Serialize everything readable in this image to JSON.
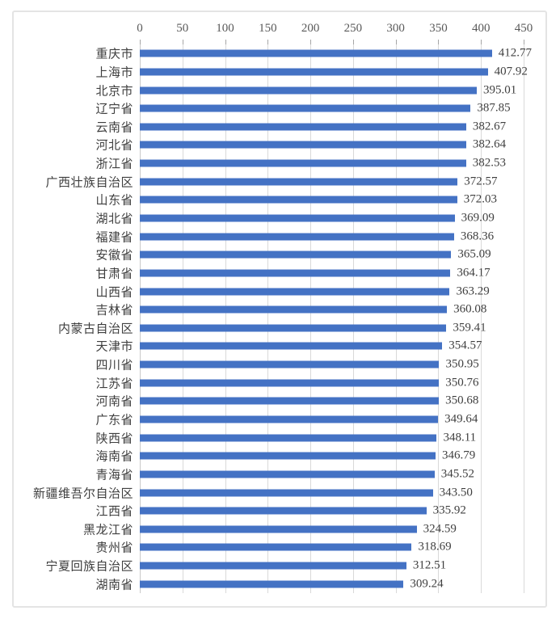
{
  "chart_data": {
    "type": "bar",
    "orientation": "horizontal",
    "title": "",
    "xlabel": "",
    "ylabel": "",
    "legend": false,
    "grid": true,
    "data_labels": true,
    "x_axis": {
      "position": "top",
      "range": [
        0,
        450
      ],
      "tick_interval": 50,
      "tick_labels": [
        "0",
        "50",
        "100",
        "150",
        "200",
        "250",
        "300",
        "350",
        "400",
        "450"
      ]
    },
    "categories": [
      "重庆市",
      "上海市",
      "北京市",
      "辽宁省",
      "云南省",
      "河北省",
      "浙江省",
      "广西壮族自治区",
      "山东省",
      "湖北省",
      "福建省",
      "安徽省",
      "甘肃省",
      "山西省",
      "吉林省",
      "内蒙古自治区",
      "天津市",
      "四川省",
      "江苏省",
      "河南省",
      "广东省",
      "陕西省",
      "海南省",
      "青海省",
      "新疆维吾尔自治区",
      "江西省",
      "黑龙江省",
      "贵州省",
      "宁夏回族自治区",
      "湖南省"
    ],
    "values": [
      412.77,
      407.92,
      395.01,
      387.85,
      382.67,
      382.64,
      382.53,
      372.57,
      372.03,
      369.09,
      368.36,
      365.09,
      364.17,
      363.29,
      360.08,
      359.41,
      354.57,
      350.95,
      350.76,
      350.68,
      349.64,
      348.11,
      346.79,
      345.52,
      343.5,
      335.92,
      324.59,
      318.69,
      312.51,
      309.24
    ],
    "value_labels": [
      "412.77",
      "407.92",
      "395.01",
      "387.85",
      "382.67",
      "382.64",
      "382.53",
      "372.57",
      "372.03",
      "369.09",
      "368.36",
      "365.09",
      "364.17",
      "363.29",
      "360.08",
      "359.41",
      "354.57",
      "350.95",
      "350.76",
      "350.68",
      "349.64",
      "348.11",
      "346.79",
      "345.52",
      "343.50",
      "335.92",
      "324.59",
      "318.69",
      "312.51",
      "309.24"
    ]
  },
  "colors": {
    "bar": "#4472C4",
    "axis_text": "#595959",
    "label_text": "#3f3f3f",
    "gridline": "#d9d9d9",
    "tick": "#a6a6a6",
    "frame_border": "#e4e4e4"
  }
}
